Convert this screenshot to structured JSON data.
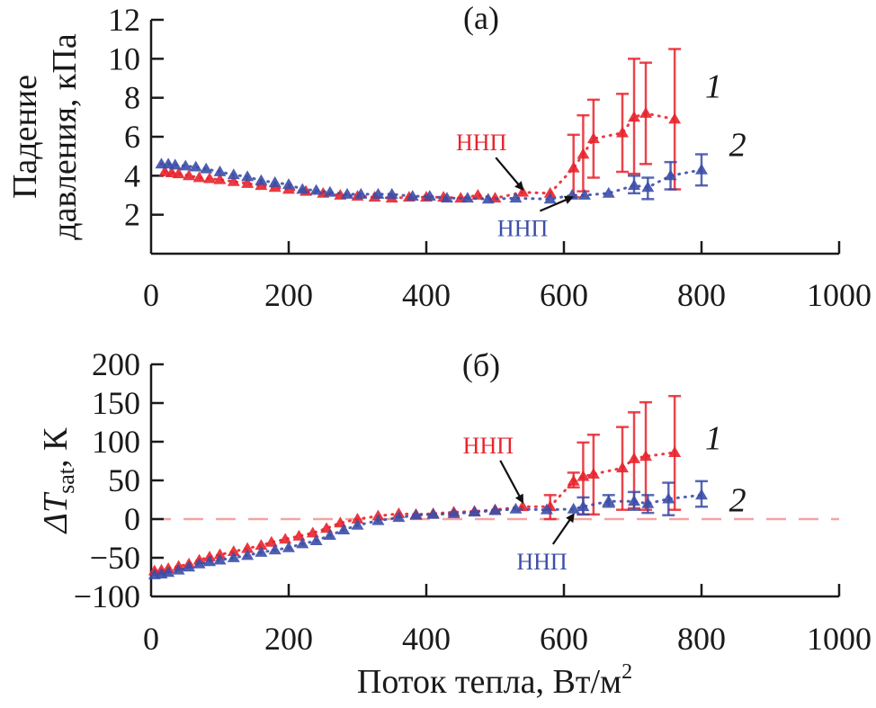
{
  "chart_data": [
    {
      "id": "a",
      "type": "scatter",
      "panel_label": "(a)",
      "xlabel": "",
      "ylabel_lines": [
        "Падение",
        "давления, кПа"
      ],
      "xlim": [
        0,
        1000
      ],
      "ylim": [
        0,
        12
      ],
      "xticks": [
        0,
        200,
        400,
        600,
        800,
        1000
      ],
      "yticks": [
        2,
        4,
        6,
        8,
        10,
        12
      ],
      "grid": false,
      "series": [
        {
          "name": "1",
          "color": "#e8242c",
          "marker": "triangle",
          "line": "dotted",
          "points": [
            {
              "x": 20,
              "y": 4.2
            },
            {
              "x": 30,
              "y": 4.15
            },
            {
              "x": 40,
              "y": 4.1
            },
            {
              "x": 55,
              "y": 4.0
            },
            {
              "x": 70,
              "y": 3.9
            },
            {
              "x": 85,
              "y": 3.85
            },
            {
              "x": 100,
              "y": 3.8
            },
            {
              "x": 120,
              "y": 3.7
            },
            {
              "x": 140,
              "y": 3.6
            },
            {
              "x": 160,
              "y": 3.5
            },
            {
              "x": 180,
              "y": 3.4
            },
            {
              "x": 200,
              "y": 3.3
            },
            {
              "x": 225,
              "y": 3.2
            },
            {
              "x": 250,
              "y": 3.1
            },
            {
              "x": 275,
              "y": 3.0
            },
            {
              "x": 300,
              "y": 2.95
            },
            {
              "x": 325,
              "y": 2.9
            },
            {
              "x": 350,
              "y": 2.85
            },
            {
              "x": 375,
              "y": 2.9
            },
            {
              "x": 400,
              "y": 2.9
            },
            {
              "x": 425,
              "y": 2.9
            },
            {
              "x": 450,
              "y": 2.85
            },
            {
              "x": 475,
              "y": 3.0
            },
            {
              "x": 500,
              "y": 2.85
            },
            {
              "x": 540,
              "y": 3.15
            },
            {
              "x": 580,
              "y": 3.1
            },
            {
              "x": 614,
              "y": 4.4,
              "err": [
                2.9,
                6.1
              ]
            },
            {
              "x": 628,
              "y": 5.1,
              "err": [
                3.2,
                7.1
              ]
            },
            {
              "x": 643,
              "y": 5.9,
              "err": [
                3.9,
                7.9
              ]
            },
            {
              "x": 685,
              "y": 6.2,
              "err": [
                4.2,
                8.2
              ]
            },
            {
              "x": 702,
              "y": 7.0,
              "err": [
                4.1,
                10.0
              ]
            },
            {
              "x": 719,
              "y": 7.2,
              "err": [
                4.6,
                9.8
              ]
            },
            {
              "x": 761,
              "y": 6.9,
              "err": [
                3.3,
                10.5
              ]
            }
          ]
        },
        {
          "name": "2",
          "color": "#3b4ea8",
          "marker": "triangle",
          "line": "dotted",
          "points": [
            {
              "x": 15,
              "y": 4.6
            },
            {
              "x": 25,
              "y": 4.6
            },
            {
              "x": 35,
              "y": 4.55
            },
            {
              "x": 50,
              "y": 4.5
            },
            {
              "x": 65,
              "y": 4.45
            },
            {
              "x": 80,
              "y": 4.35
            },
            {
              "x": 100,
              "y": 4.2
            },
            {
              "x": 120,
              "y": 4.05
            },
            {
              "x": 140,
              "y": 3.95
            },
            {
              "x": 160,
              "y": 3.75
            },
            {
              "x": 180,
              "y": 3.65
            },
            {
              "x": 200,
              "y": 3.55
            },
            {
              "x": 220,
              "y": 3.3
            },
            {
              "x": 240,
              "y": 3.25
            },
            {
              "x": 260,
              "y": 3.15
            },
            {
              "x": 285,
              "y": 3.05
            },
            {
              "x": 305,
              "y": 3.05
            },
            {
              "x": 330,
              "y": 3.05
            },
            {
              "x": 350,
              "y": 3.05
            },
            {
              "x": 380,
              "y": 2.95
            },
            {
              "x": 405,
              "y": 2.95
            },
            {
              "x": 430,
              "y": 2.85
            },
            {
              "x": 460,
              "y": 2.85
            },
            {
              "x": 490,
              "y": 2.8
            },
            {
              "x": 530,
              "y": 2.85
            },
            {
              "x": 580,
              "y": 2.8
            },
            {
              "x": 612,
              "y": 3.0
            },
            {
              "x": 630,
              "y": 3.0
            },
            {
              "x": 665,
              "y": 3.1
            },
            {
              "x": 702,
              "y": 3.5,
              "err": [
                3.1,
                4.0
              ]
            },
            {
              "x": 722,
              "y": 3.4,
              "err": [
                2.8,
                3.9
              ]
            },
            {
              "x": 755,
              "y": 4.0,
              "err": [
                3.3,
                4.7
              ]
            },
            {
              "x": 800,
              "y": 4.3,
              "err": [
                3.5,
                5.1
              ]
            }
          ]
        }
      ],
      "annotations": [
        {
          "text": "ННП",
          "color": "#e8242c",
          "label_at": {
            "x": 480,
            "y": 5.3
          },
          "arrow_to": {
            "x": 540,
            "y": 3.3
          }
        },
        {
          "text": "ННП",
          "color": "#3b4ea8",
          "label_at": {
            "x": 540,
            "y": 0.9
          },
          "arrow_to": {
            "x": 612,
            "y": 2.9
          }
        }
      ],
      "series_labels": [
        {
          "text": "1",
          "x": 805,
          "y": 8.0
        },
        {
          "text": "2",
          "x": 840,
          "y": 5.0
        }
      ]
    },
    {
      "id": "b",
      "type": "scatter",
      "panel_label": "(б)",
      "xlabel": "Поток тепла, Вт/м",
      "xlabel_sup": "2",
      "ylabel_main": "ΔT",
      "ylabel_sub": "sat",
      "ylabel_unit": ", К",
      "xlim": [
        0,
        1000
      ],
      "ylim": [
        -100,
        200
      ],
      "xticks": [
        0,
        200,
        400,
        600,
        800,
        1000
      ],
      "yticks": [
        -100,
        -50,
        0,
        50,
        100,
        150,
        200
      ],
      "ytick_labels": [
        "−100",
        "−50",
        "0",
        "50",
        "100",
        "150",
        "200"
      ],
      "grid": false,
      "reference_line": {
        "y": 0,
        "color": "#f5a3a3",
        "style": "dashed"
      },
      "series": [
        {
          "name": "1",
          "color": "#e8242c",
          "marker": "triangle",
          "line": "dotted",
          "points": [
            {
              "x": 5,
              "y": -67
            },
            {
              "x": 15,
              "y": -66
            },
            {
              "x": 25,
              "y": -64
            },
            {
              "x": 40,
              "y": -61
            },
            {
              "x": 55,
              "y": -58
            },
            {
              "x": 70,
              "y": -53
            },
            {
              "x": 85,
              "y": -49
            },
            {
              "x": 100,
              "y": -46
            },
            {
              "x": 120,
              "y": -42
            },
            {
              "x": 140,
              "y": -38
            },
            {
              "x": 160,
              "y": -34
            },
            {
              "x": 175,
              "y": -30
            },
            {
              "x": 195,
              "y": -26
            },
            {
              "x": 215,
              "y": -22
            },
            {
              "x": 235,
              "y": -18
            },
            {
              "x": 255,
              "y": -12
            },
            {
              "x": 275,
              "y": -5
            },
            {
              "x": 300,
              "y": 0
            },
            {
              "x": 330,
              "y": 4
            },
            {
              "x": 360,
              "y": 7
            },
            {
              "x": 385,
              "y": 6
            },
            {
              "x": 410,
              "y": 7
            },
            {
              "x": 440,
              "y": 9
            },
            {
              "x": 470,
              "y": 10
            },
            {
              "x": 500,
              "y": 12
            },
            {
              "x": 540,
              "y": 16
            },
            {
              "x": 580,
              "y": 16,
              "err": [
                0,
                31
              ]
            },
            {
              "x": 614,
              "y": 49,
              "err": [
                41,
                60
              ]
            },
            {
              "x": 628,
              "y": 55,
              "err": [
                6,
                99
              ]
            },
            {
              "x": 643,
              "y": 58,
              "err": [
                6,
                109
              ]
            },
            {
              "x": 685,
              "y": 66,
              "err": [
                12,
                119
              ]
            },
            {
              "x": 702,
              "y": 78,
              "err": [
                14,
                138
              ]
            },
            {
              "x": 719,
              "y": 81,
              "err": [
                12,
                151
              ]
            },
            {
              "x": 761,
              "y": 86,
              "err": [
                12,
                159
              ]
            }
          ]
        },
        {
          "name": "2",
          "color": "#3b4ea8",
          "marker": "triangle",
          "line": "dotted",
          "points": [
            {
              "x": 5,
              "y": -72
            },
            {
              "x": 15,
              "y": -71
            },
            {
              "x": 25,
              "y": -69
            },
            {
              "x": 40,
              "y": -66
            },
            {
              "x": 55,
              "y": -62
            },
            {
              "x": 70,
              "y": -58
            },
            {
              "x": 85,
              "y": -55
            },
            {
              "x": 100,
              "y": -53
            },
            {
              "x": 120,
              "y": -50
            },
            {
              "x": 140,
              "y": -47
            },
            {
              "x": 160,
              "y": -43
            },
            {
              "x": 180,
              "y": -40
            },
            {
              "x": 200,
              "y": -37
            },
            {
              "x": 220,
              "y": -32
            },
            {
              "x": 240,
              "y": -28
            },
            {
              "x": 260,
              "y": -21
            },
            {
              "x": 280,
              "y": -14
            },
            {
              "x": 300,
              "y": -8
            },
            {
              "x": 330,
              "y": -2
            },
            {
              "x": 360,
              "y": 2
            },
            {
              "x": 385,
              "y": 5
            },
            {
              "x": 410,
              "y": 6
            },
            {
              "x": 440,
              "y": 7
            },
            {
              "x": 470,
              "y": 9
            },
            {
              "x": 500,
              "y": 11
            },
            {
              "x": 530,
              "y": 13
            },
            {
              "x": 575,
              "y": 12
            },
            {
              "x": 614,
              "y": 13
            },
            {
              "x": 628,
              "y": 16,
              "err": [
                6,
                28
              ]
            },
            {
              "x": 665,
              "y": 23,
              "err": [
                16,
                31
              ]
            },
            {
              "x": 702,
              "y": 23,
              "err": [
                12,
                35
              ]
            },
            {
              "x": 722,
              "y": 20,
              "err": [
                8,
                31
              ]
            },
            {
              "x": 752,
              "y": 26,
              "err": [
                5,
                47
              ]
            },
            {
              "x": 800,
              "y": 31,
              "err": [
                16,
                49
              ]
            }
          ]
        }
      ],
      "annotations": [
        {
          "text": "ННП",
          "color": "#e8242c",
          "label_at": {
            "x": 490,
            "y": 85
          },
          "arrow_to": {
            "x": 540,
            "y": 22
          }
        },
        {
          "text": "ННП",
          "color": "#3b4ea8",
          "label_at": {
            "x": 568,
            "y": -65
          },
          "arrow_to": {
            "x": 614,
            "y": 6
          }
        }
      ],
      "series_labels": [
        {
          "text": "1",
          "x": 805,
          "y": 90
        },
        {
          "text": "2",
          "x": 840,
          "y": 10
        }
      ]
    }
  ]
}
